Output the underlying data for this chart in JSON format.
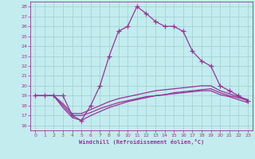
{
  "xlabel": "Windchill (Refroidissement éolien,°C)",
  "background_color": "#c2ecee",
  "grid_color": "#9fcdd4",
  "line_color": "#993399",
  "x_ticks": [
    0,
    1,
    2,
    3,
    4,
    5,
    6,
    7,
    8,
    9,
    10,
    11,
    12,
    13,
    14,
    15,
    16,
    17,
    18,
    19,
    20,
    21,
    22,
    23
  ],
  "y_ticks": [
    16,
    17,
    18,
    19,
    20,
    21,
    22,
    23,
    24,
    25,
    26,
    27,
    28
  ],
  "xlim": [
    -0.5,
    23.5
  ],
  "ylim": [
    15.5,
    28.5
  ],
  "series": [
    {
      "x": [
        0,
        1,
        2,
        3,
        4,
        5,
        6,
        7,
        8,
        9,
        10,
        11,
        12,
        13,
        14,
        15,
        16,
        17,
        18,
        19,
        20,
        21,
        22,
        23
      ],
      "y": [
        19,
        19,
        19,
        19,
        17,
        16.5,
        18,
        20,
        23,
        25.5,
        26,
        28,
        27.3,
        26.5,
        26,
        26,
        25.5,
        23.5,
        22.5,
        22,
        20,
        19.5,
        19,
        18.5
      ],
      "has_marker": true
    },
    {
      "x": [
        0,
        1,
        2,
        3,
        4,
        5,
        6,
        7,
        8,
        9,
        10,
        11,
        12,
        13,
        14,
        15,
        16,
        17,
        18,
        19,
        20,
        21,
        22,
        23
      ],
      "y": [
        19,
        19,
        19,
        18.2,
        17.2,
        17.2,
        17.6,
        18.0,
        18.4,
        18.7,
        18.9,
        19.1,
        19.3,
        19.5,
        19.6,
        19.7,
        19.8,
        19.9,
        20.0,
        20.0,
        19.5,
        19.2,
        18.9,
        18.6
      ],
      "has_marker": false
    },
    {
      "x": [
        0,
        1,
        2,
        3,
        4,
        5,
        6,
        7,
        8,
        9,
        10,
        11,
        12,
        13,
        14,
        15,
        16,
        17,
        18,
        19,
        20,
        21,
        22,
        23
      ],
      "y": [
        19,
        19,
        19,
        18.0,
        17.0,
        17.0,
        17.3,
        17.7,
        18.0,
        18.3,
        18.5,
        18.7,
        18.9,
        19.0,
        19.1,
        19.3,
        19.4,
        19.5,
        19.6,
        19.7,
        19.3,
        19.0,
        18.8,
        18.5
      ],
      "has_marker": false
    },
    {
      "x": [
        0,
        1,
        2,
        3,
        4,
        5,
        6,
        7,
        8,
        9,
        10,
        11,
        12,
        13,
        14,
        15,
        16,
        17,
        18,
        19,
        20,
        21,
        22,
        23
      ],
      "y": [
        19,
        19,
        19,
        17.8,
        16.8,
        16.5,
        17.0,
        17.4,
        17.8,
        18.1,
        18.4,
        18.6,
        18.8,
        19.0,
        19.1,
        19.2,
        19.3,
        19.4,
        19.5,
        19.5,
        19.1,
        18.9,
        18.6,
        18.3
      ],
      "has_marker": false
    }
  ]
}
